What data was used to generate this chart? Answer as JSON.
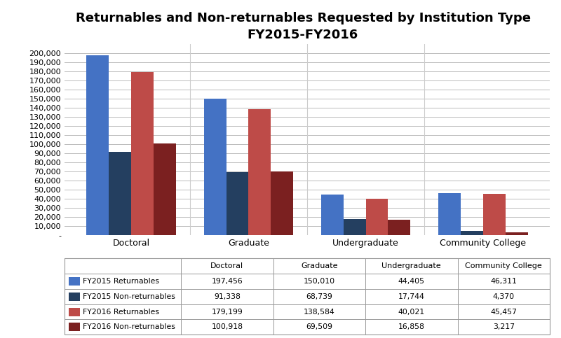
{
  "title_line1": "Returnables and Non-returnables Requested by Institution Type",
  "title_line2": "FY2015-FY2016",
  "categories": [
    "Doctoral",
    "Graduate",
    "Undergraduate",
    "Community College"
  ],
  "series": [
    {
      "label": "FY2015 Returnables",
      "color": "#4472C4",
      "values": [
        197456,
        150010,
        44405,
        46311
      ]
    },
    {
      "label": "FY2015 Non-returnables",
      "color": "#243F60",
      "values": [
        91338,
        68739,
        17744,
        4370
      ]
    },
    {
      "label": "FY2016 Returnables",
      "color": "#BE4B48",
      "values": [
        179199,
        138584,
        40021,
        45457
      ]
    },
    {
      "label": "FY2016 Non-returnables",
      "color": "#7B2020",
      "values": [
        100918,
        69509,
        16858,
        3217
      ]
    }
  ],
  "ylim": [
    0,
    210000
  ],
  "yticks": [
    0,
    10000,
    20000,
    30000,
    40000,
    50000,
    60000,
    70000,
    80000,
    90000,
    100000,
    110000,
    120000,
    130000,
    140000,
    150000,
    160000,
    170000,
    180000,
    190000,
    200000
  ],
  "ytick_labels": [
    "-",
    "10,000",
    "20,000",
    "30,000",
    "40,000",
    "50,000",
    "60,000",
    "70,000",
    "80,000",
    "90,000",
    "100,000",
    "110,000",
    "120,000",
    "130,000",
    "140,000",
    "150,000",
    "160,000",
    "170,000",
    "180,000",
    "190,000",
    "200,000"
  ],
  "table_rows": [
    [
      "FY2015 Returnables",
      "197,456",
      "150,010",
      "44,405",
      "46,311"
    ],
    [
      "FY2015 Non-returnables",
      "91,338",
      "68,739",
      "17,744",
      "4,370"
    ],
    [
      "FY2016 Returnables",
      "179,199",
      "138,584",
      "40,021",
      "45,457"
    ],
    [
      "FY2016 Non-returnables",
      "100,918",
      "69,509",
      "16,858",
      "3,217"
    ]
  ],
  "table_row_colors": [
    "#4472C4",
    "#243F60",
    "#BE4B48",
    "#7B2020"
  ],
  "background_color": "#FFFFFF",
  "grid_color": "#BBBBBB",
  "title_fontsize": 13,
  "bar_width": 0.19
}
